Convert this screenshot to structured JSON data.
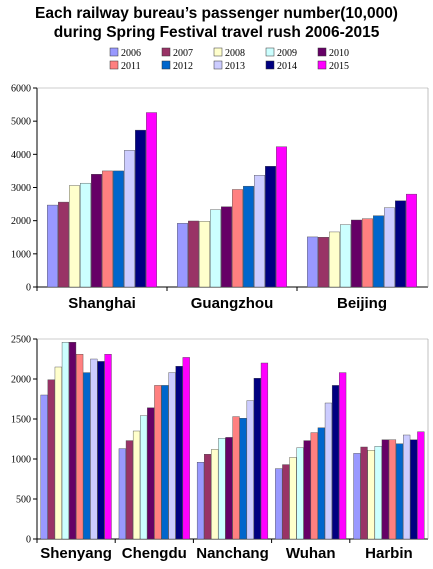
{
  "title_lines": [
    "Each railway bureau’s passenger number(10,000)",
    "during Spring Festival travel rush 2006-2015"
  ],
  "series_colors": [
    "#9999ff",
    "#993366",
    "#ffffcc",
    "#ccffff",
    "#660066",
    "#ff8080",
    "#0066cc",
    "#ccccff",
    "#000080",
    "#ff00ff"
  ],
  "chart_data": [
    {
      "type": "bar",
      "title": "Each railway bureau’s passenger number(10,000) during Spring Festival travel rush 2006-2015",
      "categories": [
        "Shanghai",
        "Guangzhou",
        "Beijing"
      ],
      "ylim": [
        0,
        6000
      ],
      "yticks": [
        0,
        1000,
        2000,
        3000,
        4000,
        5000,
        6000
      ],
      "grid": false,
      "legend_position": "top",
      "series": [
        {
          "name": "2006",
          "values": [
            2470,
            1920,
            1510
          ]
        },
        {
          "name": "2007",
          "values": [
            2560,
            1990,
            1500
          ]
        },
        {
          "name": "2008",
          "values": [
            3060,
            1980,
            1660
          ]
        },
        {
          "name": "2009",
          "values": [
            3130,
            2330,
            1880
          ]
        },
        {
          "name": "2010",
          "values": [
            3400,
            2420,
            2020
          ]
        },
        {
          "name": "2011",
          "values": [
            3500,
            2940,
            2060
          ]
        },
        {
          "name": "2012",
          "values": [
            3500,
            3040,
            2150
          ]
        },
        {
          "name": "2013",
          "values": [
            4120,
            3370,
            2390
          ]
        },
        {
          "name": "2014",
          "values": [
            4730,
            3640,
            2600
          ]
        },
        {
          "name": "2015",
          "values": [
            5260,
            4230,
            2800
          ]
        }
      ]
    },
    {
      "type": "bar",
      "categories": [
        "Shenyang",
        "Chengdu",
        "Nanchang",
        "Wuhan",
        "Harbin"
      ],
      "ylim": [
        0,
        2500
      ],
      "yticks": [
        0,
        500,
        1000,
        1500,
        2000,
        2500
      ],
      "grid": false,
      "series": [
        {
          "name": "2006",
          "values": [
            1800,
            1130,
            960,
            880,
            1070
          ]
        },
        {
          "name": "2007",
          "values": [
            1990,
            1230,
            1060,
            930,
            1150
          ]
        },
        {
          "name": "2008",
          "values": [
            2150,
            1350,
            1120,
            1020,
            1110
          ]
        },
        {
          "name": "2009",
          "values": [
            2460,
            1540,
            1260,
            1140,
            1160
          ]
        },
        {
          "name": "2010",
          "values": [
            2460,
            1640,
            1270,
            1230,
            1240
          ]
        },
        {
          "name": "2011",
          "values": [
            2310,
            1920,
            1530,
            1330,
            1240
          ]
        },
        {
          "name": "2012",
          "values": [
            2080,
            1920,
            1510,
            1390,
            1190
          ]
        },
        {
          "name": "2013",
          "values": [
            2250,
            2080,
            1730,
            1700,
            1300
          ]
        },
        {
          "name": "2014",
          "values": [
            2220,
            2160,
            2010,
            1920,
            1240
          ]
        },
        {
          "name": "2015",
          "values": [
            2310,
            2270,
            2200,
            2080,
            1340
          ]
        }
      ]
    }
  ]
}
